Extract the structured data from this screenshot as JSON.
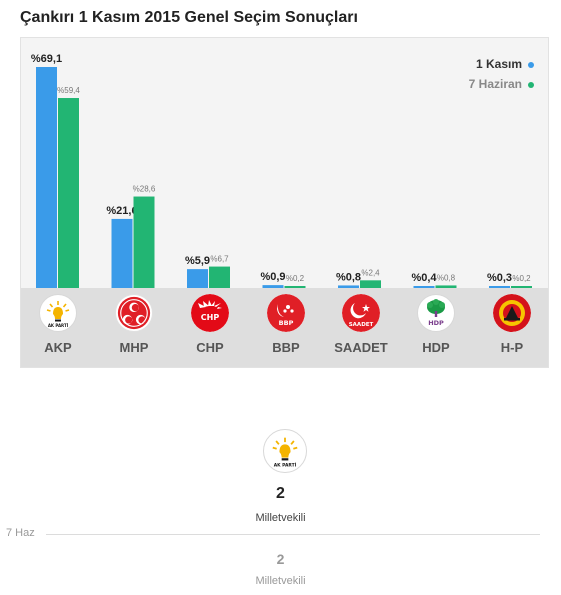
{
  "title": "Çankırı 1 Kasım 2015 Genel Seçim Sonuçları",
  "legend": {
    "current": "1 Kasım",
    "previous": "7 Haziran"
  },
  "colors": {
    "current": "#3a9be9",
    "previous": "#22b573"
  },
  "chart_data": {
    "type": "bar",
    "categories": [
      "AKP",
      "MHP",
      "CHP",
      "BBP",
      "SAADET",
      "HDP",
      "H-P"
    ],
    "series": [
      {
        "name": "1 Kasım",
        "values": [
          69.1,
          21.6,
          5.9,
          0.9,
          0.8,
          0.4,
          0.3
        ],
        "labels": [
          "%69,1",
          "%21,6",
          "%5,9",
          "%0,9",
          "%0,8",
          "%0,4",
          "%0,3"
        ]
      },
      {
        "name": "7 Haziran",
        "values": [
          59.4,
          28.6,
          6.7,
          0.2,
          2.4,
          0.8,
          0.2
        ],
        "labels": [
          "%59,4",
          "%28,6",
          "%6,7",
          "%0,2",
          "%2,4",
          "%0,8",
          "%0,2"
        ]
      }
    ],
    "ylim": [
      0,
      69.1
    ],
    "legend_position": "top-right"
  },
  "parties": [
    {
      "name": "AKP",
      "logo_text": "AK PARTİ",
      "icon": "akp-logo-icon"
    },
    {
      "name": "MHP",
      "logo_text": "",
      "icon": "mhp-logo-icon"
    },
    {
      "name": "CHP",
      "logo_text": "CHP",
      "icon": "chp-logo-icon"
    },
    {
      "name": "BBP",
      "logo_text": "BBP",
      "icon": "bbp-logo-icon"
    },
    {
      "name": "SAADET",
      "logo_text": "SAADET",
      "icon": "saadet-logo-icon"
    },
    {
      "name": "HDP",
      "logo_text": "HDP",
      "icon": "hdp-logo-icon"
    },
    {
      "name": "H-P",
      "logo_text": "",
      "icon": "hp-logo-icon"
    }
  ],
  "seats": {
    "winner_logo_text": "AK PARTİ",
    "current_count": "2",
    "current_label": "Milletvekili",
    "previous_tag": "7 Haz",
    "previous_count": "2",
    "previous_label": "Milletvekili"
  }
}
